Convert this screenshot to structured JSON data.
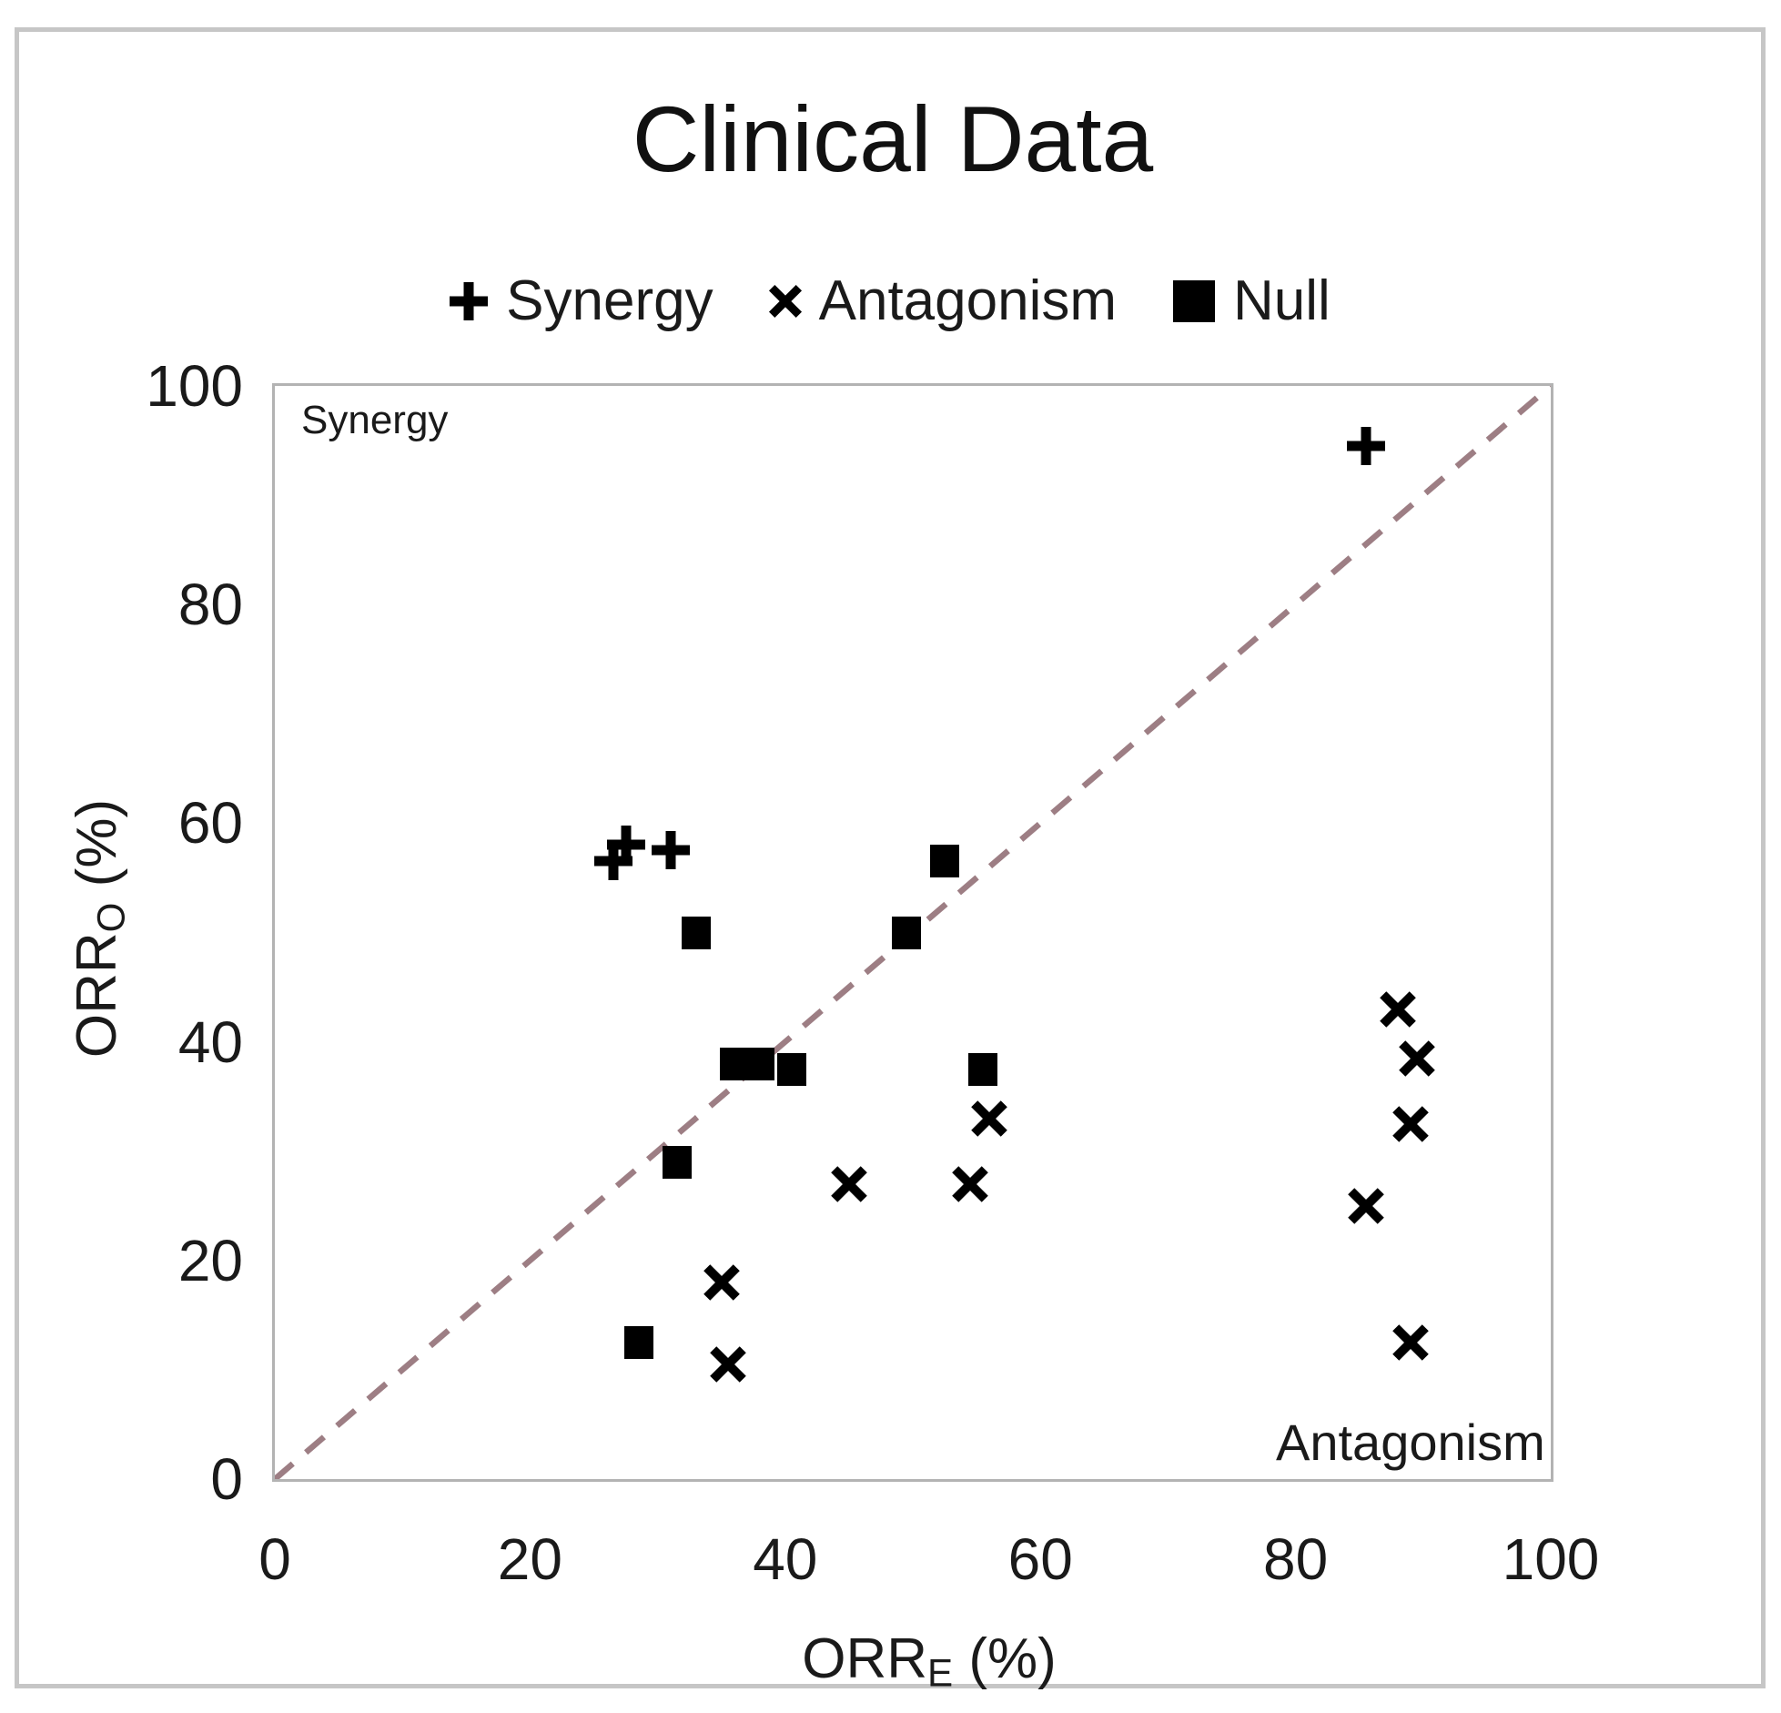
{
  "title": "Clinical Data",
  "legend": {
    "items": [
      {
        "label": "Synergy",
        "marker": "plus"
      },
      {
        "label": "Antagonism",
        "marker": "x"
      },
      {
        "label": "Null",
        "marker": "square"
      }
    ]
  },
  "axes": {
    "x": {
      "base": "ORR",
      "sub": "E",
      "unit": " (%)",
      "ticks": [
        0,
        20,
        40,
        60,
        80,
        100
      ]
    },
    "y": {
      "base": "ORR",
      "sub": "O",
      "unit": " (%)",
      "ticks": [
        0,
        20,
        40,
        60,
        80,
        100
      ]
    }
  },
  "plot": {
    "region_labels": {
      "top_left": "Synergy",
      "bottom_right": "Antagonism"
    }
  },
  "colors": {
    "marker": "#000000",
    "dashed_line": "#9d7e84",
    "plot_border": "#b3b3b3",
    "frame_border": "#c6c6c6",
    "text": "#1a1a1a"
  },
  "chart_data": {
    "type": "scatter",
    "title": "Clinical Data",
    "xlabel": "ORR_E (%)",
    "ylabel": "ORR_O (%)",
    "xlim": [
      0,
      100
    ],
    "ylim": [
      0,
      100
    ],
    "xticks": [
      0,
      20,
      40,
      60,
      80,
      100
    ],
    "yticks": [
      0,
      20,
      40,
      60,
      80,
      100
    ],
    "grid": false,
    "legend_position": "top-center",
    "identity_line": {
      "from": [
        0,
        0
      ],
      "to": [
        100,
        100
      ],
      "style": "dashed",
      "color": "#9d7e84"
    },
    "series": [
      {
        "name": "Synergy",
        "marker": "plus",
        "points": [
          [
            26.5,
            56.5
          ],
          [
            27.5,
            58
          ],
          [
            31,
            57.5
          ],
          [
            85.5,
            94.5
          ]
        ]
      },
      {
        "name": "Antagonism",
        "marker": "x",
        "points": [
          [
            35,
            18
          ],
          [
            35.5,
            10.5
          ],
          [
            45,
            27
          ],
          [
            54.5,
            27
          ],
          [
            56,
            33
          ],
          [
            85.5,
            25
          ],
          [
            88,
            43
          ],
          [
            89,
            12.5
          ],
          [
            89,
            32.5
          ],
          [
            89.5,
            38.5
          ]
        ]
      },
      {
        "name": "Null",
        "marker": "square",
        "points": [
          [
            28.5,
            12.5
          ],
          [
            31.5,
            29
          ],
          [
            33,
            50
          ],
          [
            36,
            38
          ],
          [
            38,
            38
          ],
          [
            40.5,
            37.5
          ],
          [
            49.5,
            50
          ],
          [
            52.5,
            56.5
          ],
          [
            55.5,
            37.5
          ]
        ]
      }
    ]
  }
}
